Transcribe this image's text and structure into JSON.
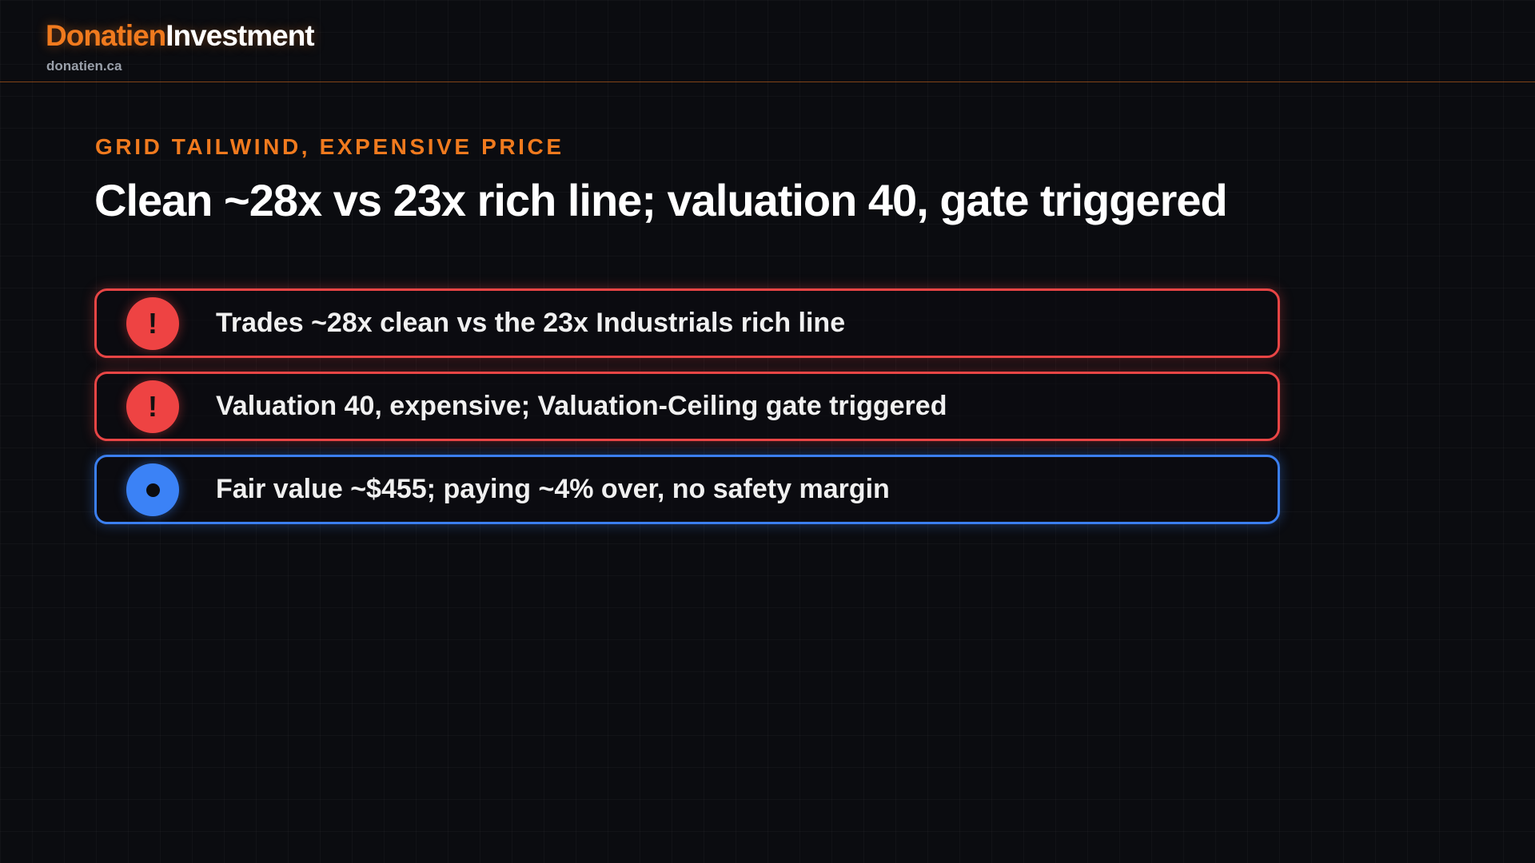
{
  "header": {
    "brand_primary": "Donatien",
    "brand_secondary": "Investment",
    "domain": "donatien.ca",
    "accent_color": "#f07a1e"
  },
  "slide": {
    "kicker": "GRID TAILWIND, EXPENSIVE PRICE",
    "title": "Clean ~28x vs 23x rich line; valuation 40, gate triggered"
  },
  "points": [
    {
      "text": "Trades ~28x clean vs the 23x Industrials rich line",
      "severity": "warning",
      "icon": "exclamation-icon",
      "badge": "!",
      "color": "#e84545"
    },
    {
      "text": "Valuation 40, expensive; Valuation-Ceiling gate triggered",
      "severity": "warning",
      "icon": "exclamation-icon",
      "badge": "!",
      "color": "#e84545"
    },
    {
      "text": "Fair value ~$455; paying ~4% over, no safety margin",
      "severity": "info",
      "icon": "dot-icon",
      "color": "#3b7ff0"
    }
  ]
}
